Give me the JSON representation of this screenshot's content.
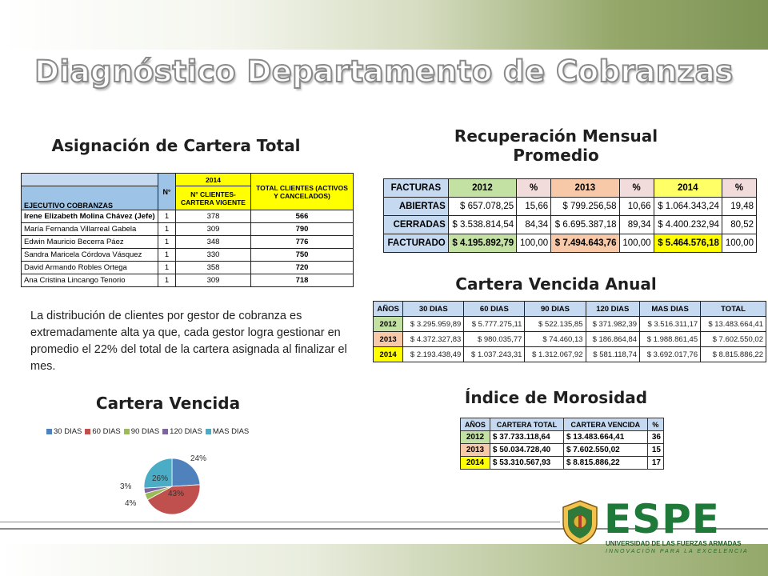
{
  "title": "Diagnóstico Departamento de Cobranzas",
  "asignacion": {
    "title": "Asignación de Cartera Total",
    "headers": {
      "year": "2014",
      "total": "TOTAL CLIENTES (ACTIVOS Y CANCELADOS)",
      "ejecutivo": "EJECUTIVO COBRANZAS",
      "n": "N°",
      "vigente": "N° CLIENTES-CARTERA VIGENTE"
    },
    "rows": [
      {
        "name": "Irene Elizabeth Molina Chávez (Jefe)",
        "n": "1",
        "vigente": "378",
        "total": "566"
      },
      {
        "name": "María Fernanda Villarreal Gabela",
        "n": "1",
        "vigente": "309",
        "total": "790"
      },
      {
        "name": "Edwin Mauricio Becerra Páez",
        "n": "1",
        "vigente": "348",
        "total": "776"
      },
      {
        "name": "Sandra Maricela Córdova Vásquez",
        "n": "1",
        "vigente": "330",
        "total": "750"
      },
      {
        "name": "David Armando Robles Ortega",
        "n": "1",
        "vigente": "358",
        "total": "720"
      },
      {
        "name": "Ana Cristina Lincango Tenorio",
        "n": "1",
        "vigente": "309",
        "total": "718"
      }
    ]
  },
  "paragraph": "La distribución de clientes por gestor de cobranza es extremadamente alta ya que, cada gestor logra gestionar en promedio el 22% del total de la cartera asignada al finalizar el mes.",
  "recuperacion": {
    "title_line1": "Recuperación Mensual",
    "title_line2": "Promedio",
    "headers": [
      "FACTURAS",
      "2012",
      "%",
      "2013",
      "%",
      "2014",
      "%"
    ],
    "rows": [
      {
        "label": "ABIERTAS",
        "v2012": "$     657.078,25",
        "p2012": "15,66",
        "v2013": "$     799.256,58",
        "p2013": "10,66",
        "v2014": "$ 1.064.343,24",
        "p2014": "19,48"
      },
      {
        "label": "CERRADAS",
        "v2012": "$ 3.538.814,54",
        "p2012": "84,34",
        "v2013": "$ 6.695.387,18",
        "p2013": "89,34",
        "v2014": "$ 4.400.232,94",
        "p2014": "80,52"
      },
      {
        "label": "FACTURADO",
        "v2012": "$ 4.195.892,79",
        "p2012": "100,00",
        "v2013": "$ 7.494.643,76",
        "p2013": "100,00",
        "v2014": "$ 5.464.576,18",
        "p2014": "100,00"
      }
    ]
  },
  "vencida_anual": {
    "title": "Cartera Vencida Anual",
    "headers": [
      "AÑOS",
      "30 DIAS",
      "60 DIAS",
      "90 DIAS",
      "120 DIAS",
      "MAS DIAS",
      "TOTAL"
    ],
    "rows": [
      {
        "year": "2012",
        "c30": "$   3.295.959,89",
        "c60": "$ 5.777.275,11",
        "c90": "$    522.135,85",
        "c120": "$    371.982,39",
        "mas": "$ 3.516.311,17",
        "total": "$ 13.483.664,41"
      },
      {
        "year": "2013",
        "c30": "$   4.372.327,83",
        "c60": "$    980.035,77",
        "c90": "$      74.460,13",
        "c120": "$    186.864,84",
        "mas": "$ 1.988.861,45",
        "total": "$   7.602.550,02"
      },
      {
        "year": "2014",
        "c30": "$   2.193.438,49",
        "c60": "$ 1.037.243,31",
        "c90": "$ 1.312.067,92",
        "c120": "$    581.118,74",
        "mas": "$ 3.692.017,76",
        "total": "$   8.815.886,22"
      }
    ]
  },
  "morosidad": {
    "title": "Índice de Morosidad",
    "headers": [
      "AÑOS",
      "CARTERA TOTAL",
      "CARTERA VENCIDA",
      "%"
    ],
    "rows": [
      {
        "year": "2012",
        "total": "$   37.733.118,64",
        "vencida": "$          13.483.664,41",
        "pct": "36"
      },
      {
        "year": "2013",
        "total": "$   50.034.728,40",
        "vencida": "$            7.602.550,02",
        "pct": "15"
      },
      {
        "year": "2014",
        "total": "$   53.310.567,93",
        "vencida": "$            8.815.886,22",
        "pct": "17"
      }
    ]
  },
  "chart_data": {
    "type": "pie",
    "title": "Cartera Vencida",
    "categories": [
      "30 DIAS",
      "60 DIAS",
      "90 DIAS",
      "120 DIAS",
      "MAS DIAS"
    ],
    "values": [
      24,
      43,
      4,
      3,
      26
    ],
    "labels": [
      "24%",
      "43%",
      "4%",
      "3%",
      "26%"
    ],
    "colors": [
      "#4f81bd",
      "#c0504d",
      "#9bbb59",
      "#8064a2",
      "#4bacc6"
    ],
    "legend_position": "top"
  },
  "logo": {
    "name": "ESPE",
    "subtitle": "UNIVERSIDAD DE LAS FUERZAS ARMADAS",
    "tagline": "INNOVACIÓN PARA LA EXCELENCIA"
  }
}
